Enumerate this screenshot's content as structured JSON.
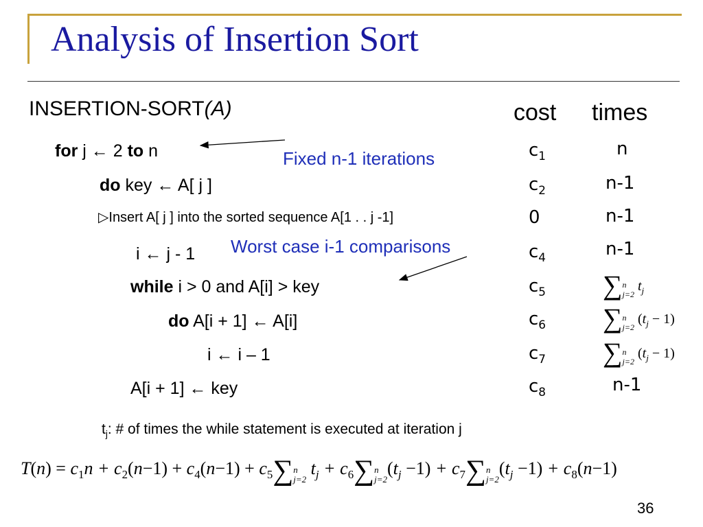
{
  "slide": {
    "title": "Analysis of Insertion Sort",
    "page_number": "36"
  },
  "algorithm": {
    "name": "INSERTION-SORT",
    "arg": "(A)"
  },
  "headers": {
    "cost": "cost",
    "times": "times"
  },
  "lines": [
    {
      "kw": "for",
      "text": " j ← 2 ",
      "kw2": "to",
      "text2": " n",
      "cost": "c",
      "cost_sub": "1",
      "times": "n"
    },
    {
      "kw": "do",
      "text": " key ← A[ j ]",
      "cost": "c",
      "cost_sub": "2",
      "times": "n-1"
    },
    {
      "text": "▷Insert A[ j ] into the sorted sequence A[1 . . j -1]",
      "cost": "0",
      "times": "n-1"
    },
    {
      "text": "i ← j - 1",
      "cost": "c",
      "cost_sub": "4",
      "times": "n-1"
    },
    {
      "kw": "while",
      "text": " i > 0 and A[i] > key",
      "cost": "c",
      "cost_sub": "5",
      "times": "∑ j=2..n t_j"
    },
    {
      "kw": "do",
      "text": " A[i + 1] ← A[i]",
      "cost": "c",
      "cost_sub": "6",
      "times": "∑ j=2..n (t_j − 1)"
    },
    {
      "text": "i ← i – 1",
      "cost": "c",
      "cost_sub": "7",
      "times": "∑ j=2..n (t_j − 1)"
    },
    {
      "text": "A[i + 1] ← key",
      "cost": "c",
      "cost_sub": "8",
      "times": "n-1"
    }
  ],
  "annotations": {
    "fixed": "Fixed n-1 iterations",
    "worst": "Worst case i-1 comparisons"
  },
  "note": {
    "prefix": "t",
    "sub": "j",
    "text": ": # of times the while statement is executed at iteration j"
  },
  "formula": {
    "text": "T(n) = c1n + c2(n−1) + c4(n−1) + c5 ∑ j=2..n t_j + c6 ∑ j=2..n (t_j − 1) + c7 ∑ j=2..n (t_j − 1) + c8(n−1)"
  },
  "colors": {
    "title": "#1a1aa0",
    "annotation": "#1f2fb8",
    "accent": "#c8a23c"
  }
}
